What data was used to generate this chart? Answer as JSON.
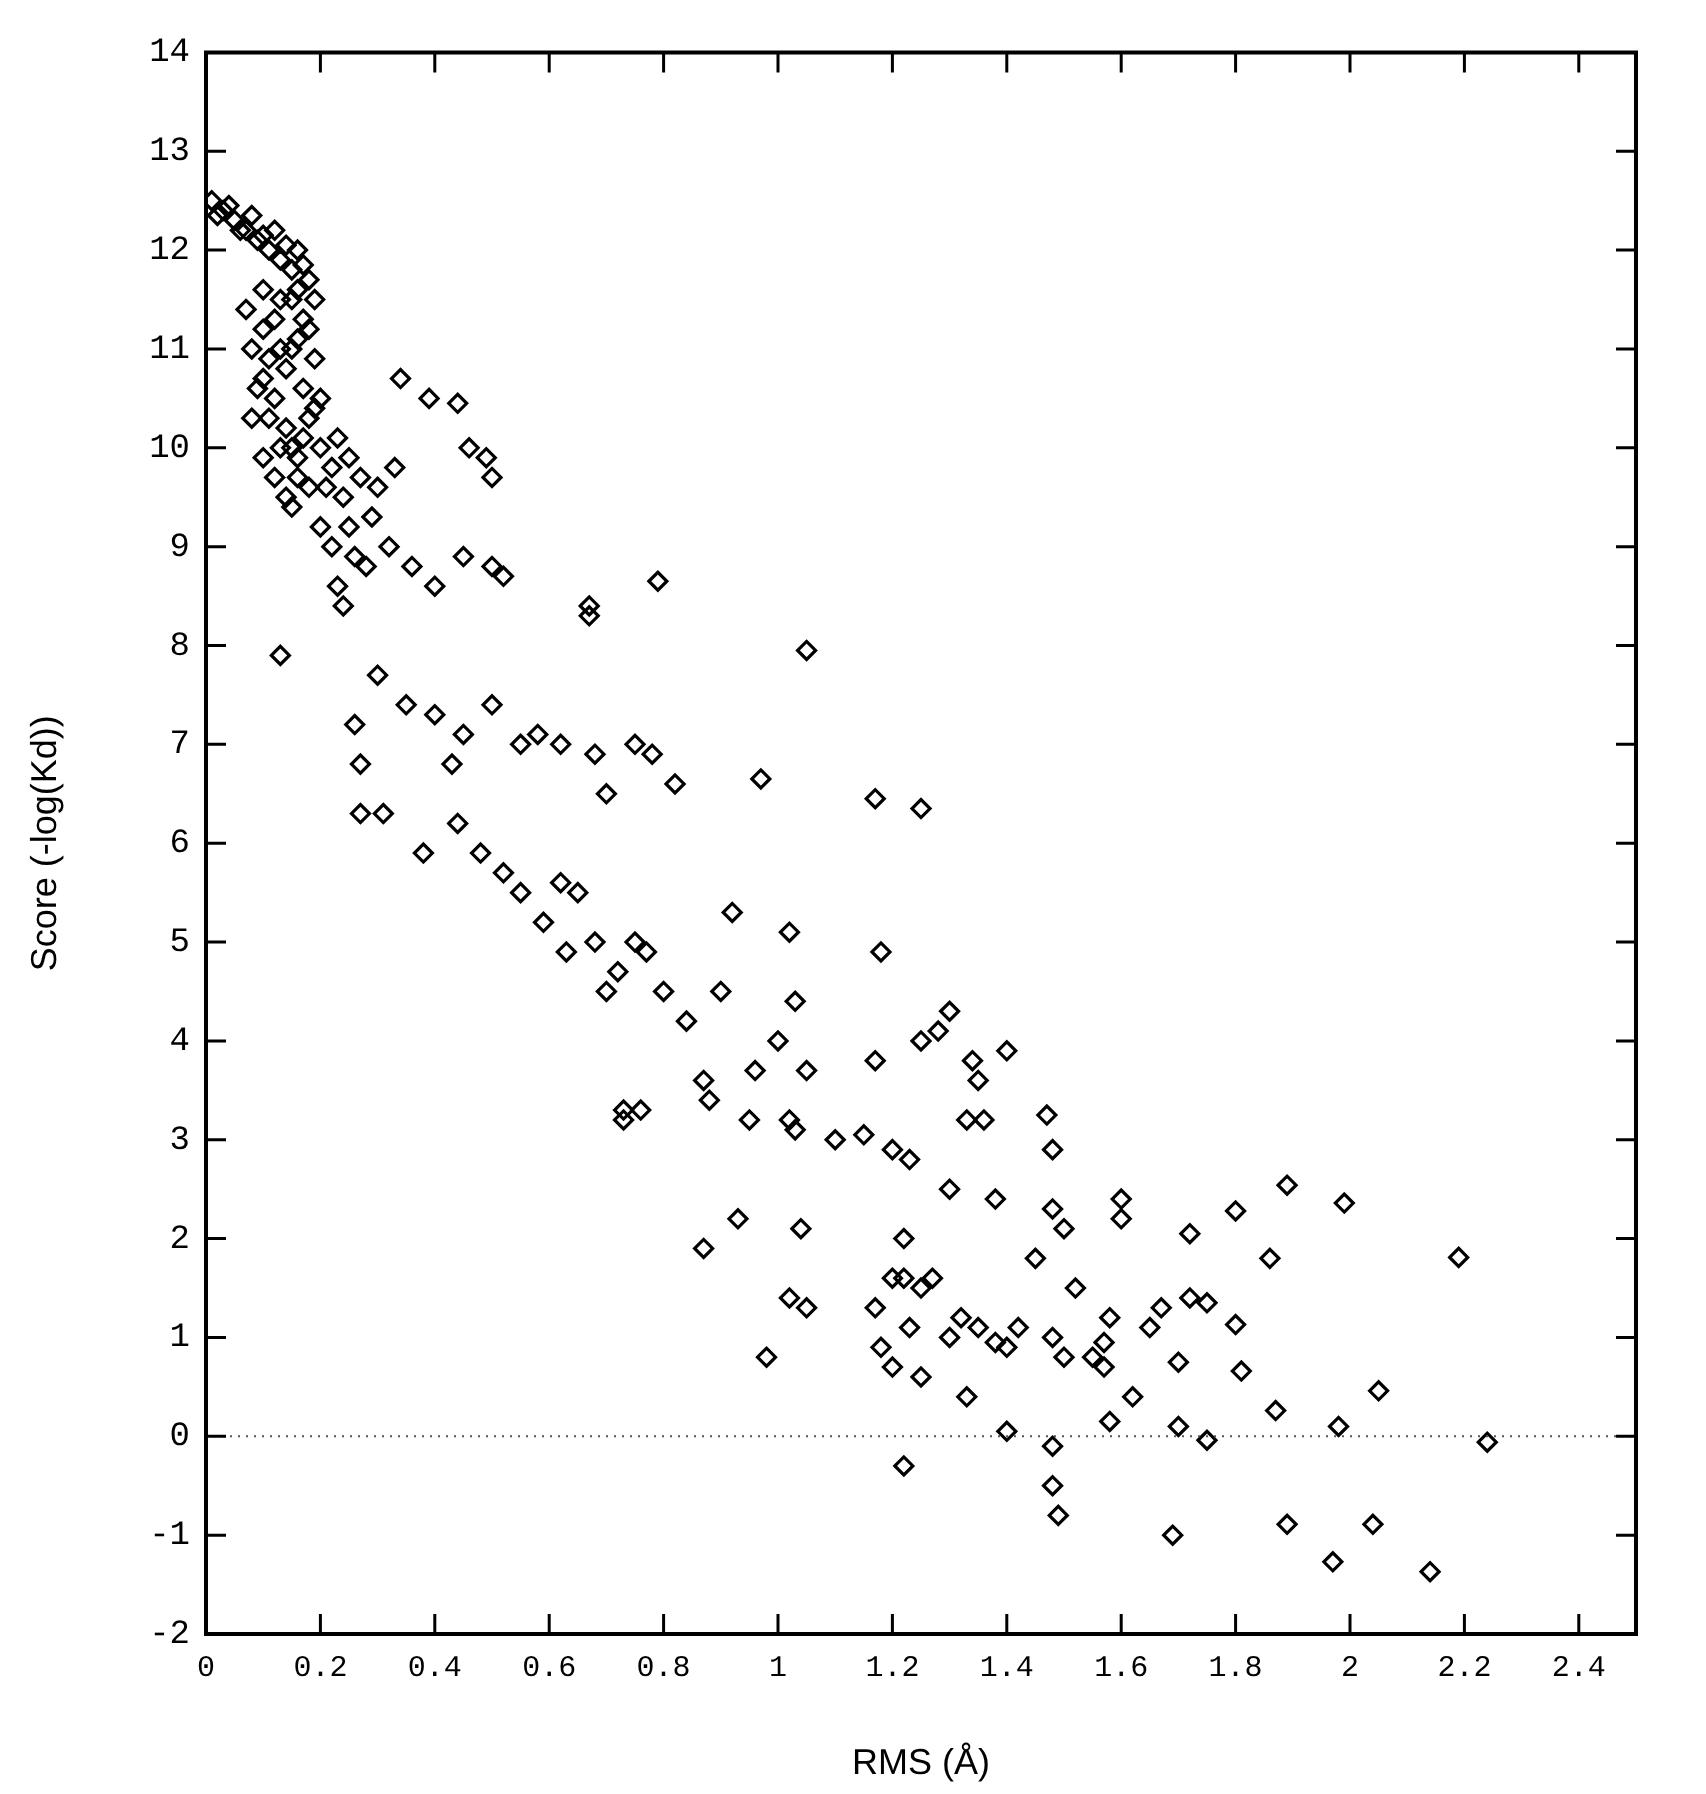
{
  "chart_data": {
    "type": "scatter",
    "xlabel": "RMS (Å)",
    "ylabel": "Score (-log(Kd))",
    "xlim": [
      0,
      2.5
    ],
    "ylim": [
      -2,
      14
    ],
    "xticks": [
      0,
      0.2,
      0.4,
      0.6,
      0.8,
      1,
      1.2,
      1.4,
      1.6,
      1.8,
      2,
      2.2,
      2.4
    ],
    "yticks": [
      -2,
      -1,
      0,
      1,
      2,
      3,
      4,
      5,
      6,
      7,
      8,
      9,
      10,
      11,
      12,
      13,
      14
    ],
    "grid": false,
    "legend": false,
    "marker": "diamond",
    "ref_lines": [
      {
        "axis": "y",
        "value": 0,
        "line_style": "dotted",
        "color": "#555555"
      }
    ],
    "series": [
      {
        "color": "#000000",
        "x": [
          0.02,
          0.04,
          0.06,
          0.08,
          0.1,
          0.12,
          0.14,
          0.16,
          0.17,
          0.18,
          0.19,
          0.18,
          0.16,
          0.19,
          0.1,
          0.14,
          0.17,
          0.19,
          0.09,
          0.11,
          0.13,
          0.17,
          0.16,
          0.12,
          0.15,
          0.18,
          0.21,
          0.23,
          0.25,
          0.27,
          0.2,
          0.22,
          0.25,
          0.23,
          0.26,
          0.29,
          0.3,
          0.33,
          0.1,
          0.13,
          0.07,
          0.15,
          0.01,
          0.03,
          0.05,
          0.07,
          0.09,
          0.11,
          0.13,
          0.15,
          0.16,
          0.17,
          0.15,
          0.12,
          0.08,
          0.1,
          0.12,
          0.14,
          0.15,
          0.16,
          0.14,
          0.18,
          0.2,
          0.22,
          0.24,
          0.11,
          0.13,
          0.2,
          0.08,
          0.1,
          0.34,
          0.44,
          0.39,
          0.46,
          0.49,
          0.5,
          0.79,
          0.13,
          1.05,
          0.67,
          0.67,
          0.24,
          0.28,
          0.32,
          0.36,
          0.4,
          0.45,
          0.5,
          0.52,
          0.3,
          0.35,
          0.4,
          0.45,
          0.43,
          0.5,
          0.55,
          0.58,
          0.62,
          0.68,
          0.7,
          0.75,
          0.78,
          0.82,
          0.26,
          0.27,
          0.27,
          0.31,
          0.38,
          0.44,
          0.48,
          0.52,
          0.55,
          0.59,
          0.62,
          0.65,
          0.63,
          0.68,
          0.7,
          0.72,
          0.75,
          0.77,
          0.8,
          0.84,
          0.87,
          0.9,
          0.92,
          0.96,
          0.97,
          0.73,
          0.73,
          0.76,
          0.88,
          0.95,
          1.0,
          1.03,
          1.02,
          1.05,
          1.02,
          1.03,
          0.93,
          0.87,
          0.98,
          1.04,
          1.02,
          1.05,
          1.1,
          1.15,
          1.17,
          1.18,
          1.17,
          1.25,
          1.2,
          1.23,
          1.25,
          1.28,
          1.3,
          1.34,
          1.36,
          1.33,
          1.35,
          1.4,
          1.38,
          1.3,
          1.22,
          1.17,
          1.2,
          1.22,
          1.25,
          1.27,
          1.23,
          1.18,
          1.2,
          1.25,
          1.22,
          1.3,
          1.32,
          1.35,
          1.33,
          1.38,
          1.4,
          1.42,
          1.4,
          1.45,
          1.48,
          1.47,
          1.48,
          1.5,
          1.48,
          1.5,
          1.52,
          1.48,
          1.48,
          1.49,
          1.55,
          1.57,
          1.57,
          1.58,
          1.6,
          1.6,
          1.58,
          1.62,
          1.65,
          1.67,
          1.7,
          1.72,
          1.7,
          1.72,
          1.69,
          1.75,
          1.75,
          1.8,
          1.8,
          1.81,
          1.86,
          1.87,
          1.89,
          1.89,
          1.98,
          1.97,
          1.99,
          2.04,
          2.05,
          2.14,
          2.19,
          2.24
        ],
        "values": [
          12.35,
          12.45,
          12.2,
          12.35,
          12.15,
          12.2,
          12.05,
          12.0,
          11.85,
          11.7,
          11.5,
          11.2,
          11.1,
          10.9,
          11.2,
          10.8,
          10.6,
          10.4,
          10.6,
          10.3,
          10.0,
          10.1,
          9.9,
          9.7,
          9.4,
          9.6,
          9.6,
          10.1,
          9.9,
          9.7,
          9.2,
          9.0,
          9.2,
          8.6,
          8.9,
          9.3,
          9.6,
          9.8,
          11.6,
          11.5,
          11.4,
          11.0,
          12.5,
          12.4,
          12.3,
          12.2,
          12.1,
          12.0,
          11.9,
          11.8,
          11.6,
          11.3,
          11.5,
          11.3,
          11.0,
          10.7,
          10.5,
          10.2,
          10.0,
          9.7,
          9.5,
          10.3,
          10.0,
          9.8,
          9.5,
          10.9,
          11.0,
          10.5,
          10.3,
          9.9,
          10.7,
          10.45,
          10.5,
          10.0,
          9.9,
          9.7,
          8.65,
          7.9,
          7.95,
          8.4,
          8.3,
          8.4,
          8.8,
          9.0,
          8.8,
          8.6,
          8.9,
          8.8,
          8.7,
          7.7,
          7.4,
          7.3,
          7.1,
          6.8,
          7.4,
          7.0,
          7.1,
          7.0,
          6.9,
          6.5,
          7.0,
          6.9,
          6.6,
          7.2,
          6.8,
          6.3,
          6.3,
          5.9,
          6.2,
          5.9,
          5.7,
          5.5,
          5.2,
          5.6,
          5.5,
          4.9,
          5.0,
          4.5,
          4.7,
          5.0,
          4.9,
          4.5,
          4.2,
          3.6,
          4.5,
          5.3,
          3.7,
          6.65,
          3.3,
          3.2,
          3.3,
          3.4,
          3.2,
          4.0,
          4.4,
          5.1,
          3.7,
          3.2,
          3.1,
          2.2,
          1.9,
          0.8,
          2.1,
          1.4,
          1.3,
          3.0,
          3.05,
          3.8,
          4.9,
          6.45,
          6.35,
          2.9,
          2.8,
          4.0,
          4.1,
          4.3,
          3.8,
          3.2,
          3.2,
          3.6,
          3.9,
          2.4,
          2.5,
          2.0,
          1.3,
          1.6,
          1.6,
          1.5,
          1.6,
          1.1,
          0.9,
          0.7,
          0.6,
          -0.3,
          1.0,
          1.2,
          1.1,
          0.4,
          0.95,
          0.9,
          1.1,
          0.05,
          1.8,
          2.3,
          3.25,
          2.9,
          2.1,
          1.0,
          0.8,
          1.5,
          -0.1,
          -0.5,
          -0.8,
          0.8,
          0.95,
          0.7,
          1.2,
          2.4,
          2.2,
          0.15,
          0.4,
          1.1,
          1.3,
          0.75,
          1.4,
          0.1,
          2.05,
          -1.0,
          -0.04,
          1.35,
          2.28,
          1.13,
          0.66,
          1.8,
          0.26,
          2.54,
          -0.89,
          0.1,
          -1.27,
          2.36,
          -0.89,
          0.46,
          -1.37,
          1.81,
          -0.06
        ]
      }
    ]
  }
}
